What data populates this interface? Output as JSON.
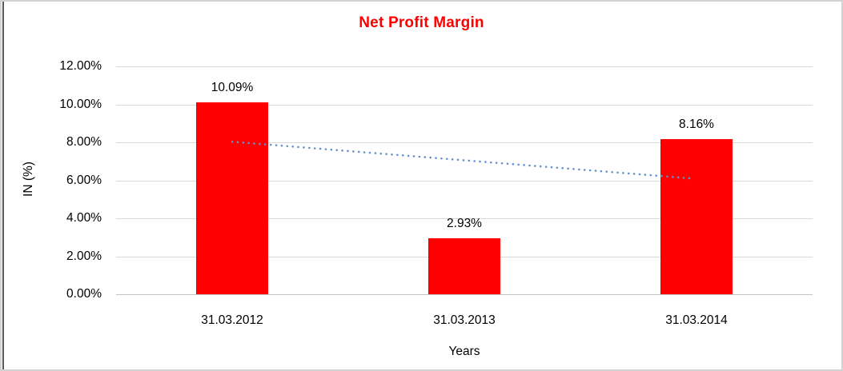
{
  "chart_data": {
    "type": "bar",
    "title": "Net Profit Margin",
    "categories": [
      "31.03.2012",
      "31.03.2013",
      "31.03.2014"
    ],
    "values": [
      10.09,
      2.93,
      8.16
    ],
    "data_labels": [
      "10.09%",
      "2.93%",
      "8.16%"
    ],
    "xlabel": "Years",
    "ylabel": "IN (%)",
    "ylim": [
      0,
      12
    ],
    "ytick_values": [
      12,
      10,
      8,
      6,
      4,
      2,
      0
    ],
    "ytick_labels": [
      "12.00%",
      "10.00%",
      "8.00%",
      "6.00%",
      "4.00%",
      "2.00%",
      "0.00%"
    ],
    "grid": "horizontal",
    "legend": "none",
    "trendline": {
      "type": "linear",
      "style": "dotted",
      "start_index": 0,
      "end_index": 2,
      "start_value": 8.03,
      "end_value": 6.09
    },
    "colors": {
      "bar": "#ff0000",
      "title": "#ff0000",
      "text": "#000000",
      "gridline": "#d9d9d9",
      "baseline": "#c3c3c3",
      "trendline": "#6491cd"
    }
  }
}
